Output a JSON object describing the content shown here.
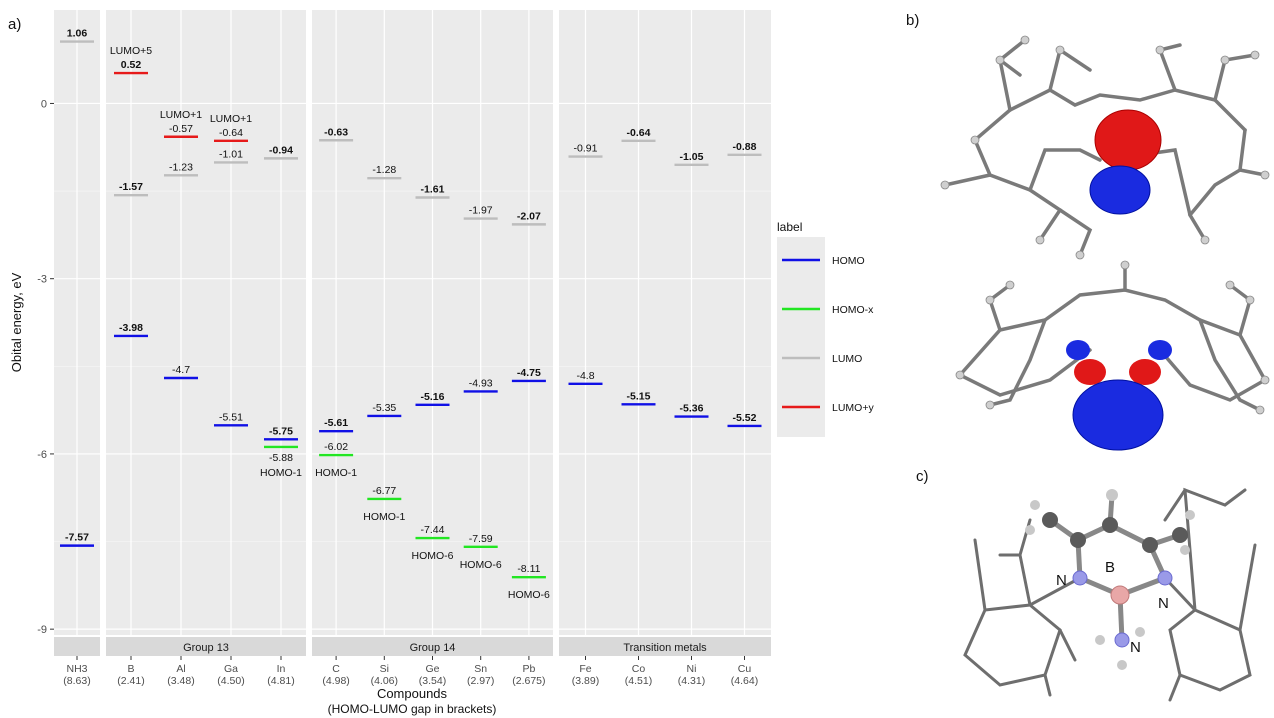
{
  "panel_labels": {
    "a": "a)",
    "b": "b)",
    "c": "c)"
  },
  "chart_data": {
    "type": "scatter",
    "ylabel": "Obital energy, eV",
    "xlabel": "Compounds",
    "xlabel2": "(HOMO-LUMO gap in brackets)",
    "yticks": [
      0,
      -3,
      -6,
      -9
    ],
    "ylim": [
      -9.1,
      1.6
    ],
    "legend": {
      "title": "label",
      "entries": [
        {
          "name": "HOMO",
          "color": "#1010e6"
        },
        {
          "name": "HOMO-x",
          "color": "#22e622"
        },
        {
          "name": "LUMO",
          "color": "#bdbdbd"
        },
        {
          "name": "LUMO+y",
          "color": "#e61a1a"
        }
      ]
    },
    "facets": [
      {
        "strip": "",
        "compounds": [
          {
            "name": "NH3",
            "gap": "(8.63)"
          }
        ]
      },
      {
        "strip": "Group 13",
        "compounds": [
          {
            "name": "B",
            "gap": "(2.41)"
          },
          {
            "name": "Al",
            "gap": "(3.48)"
          },
          {
            "name": "Ga",
            "gap": "(4.50)"
          },
          {
            "name": "In",
            "gap": "(4.81)"
          }
        ]
      },
      {
        "strip": "Group 14",
        "compounds": [
          {
            "name": "C",
            "gap": "(4.98)"
          },
          {
            "name": "Si",
            "gap": "(4.06)"
          },
          {
            "name": "Ge",
            "gap": "(3.54)"
          },
          {
            "name": "Sn",
            "gap": "(2.97)"
          },
          {
            "name": "Pb",
            "gap": "(2.675)"
          }
        ]
      },
      {
        "strip": "Transition metals",
        "compounds": [
          {
            "name": "Fe",
            "gap": "(3.89)"
          },
          {
            "name": "Co",
            "gap": "(4.51)"
          },
          {
            "name": "Ni",
            "gap": "(4.31)"
          },
          {
            "name": "Cu",
            "gap": "(4.64)"
          }
        ]
      }
    ],
    "levels": [
      {
        "compound": "NH3",
        "label": "LUMO",
        "y": 1.06,
        "text": "1.06"
      },
      {
        "compound": "NH3",
        "label": "HOMO",
        "y": -7.57,
        "text": "-7.57"
      },
      {
        "compound": "B",
        "label": "LUMO+y",
        "y": 0.52,
        "text": "0.52",
        "tag": "LUMO+5"
      },
      {
        "compound": "B",
        "label": "LUMO",
        "y": -1.57,
        "text": "-1.57"
      },
      {
        "compound": "B",
        "label": "HOMO",
        "y": -3.98,
        "text": "-3.98"
      },
      {
        "compound": "Al",
        "label": "LUMO+y",
        "y": -0.57,
        "text": "-0.57",
        "tag": "LUMO+1"
      },
      {
        "compound": "Al",
        "label": "LUMO",
        "y": -1.23,
        "text": "-1.23"
      },
      {
        "compound": "Al",
        "label": "HOMO",
        "y": -4.7,
        "text": "-4.7"
      },
      {
        "compound": "Ga",
        "label": "LUMO+y",
        "y": -0.64,
        "text": "-0.64",
        "tag": "LUMO+1"
      },
      {
        "compound": "Ga",
        "label": "LUMO",
        "y": -1.01,
        "text": "-1.01"
      },
      {
        "compound": "Ga",
        "label": "HOMO",
        "y": -5.51,
        "text": "-5.51"
      },
      {
        "compound": "In",
        "label": "LUMO",
        "y": -0.94,
        "text": "-0.94"
      },
      {
        "compound": "In",
        "label": "HOMO",
        "y": -5.75,
        "text": "-5.75"
      },
      {
        "compound": "In",
        "label": "HOMO-x",
        "y": -5.88,
        "text": "-5.88",
        "tag": "HOMO-1"
      },
      {
        "compound": "C",
        "label": "LUMO",
        "y": -0.63,
        "text": "-0.63"
      },
      {
        "compound": "C",
        "label": "HOMO",
        "y": -5.61,
        "text": "-5.61"
      },
      {
        "compound": "C",
        "label": "HOMO-x",
        "y": -6.02,
        "text": "-6.02",
        "tag": "HOMO-1"
      },
      {
        "compound": "Si",
        "label": "LUMO",
        "y": -1.28,
        "text": "-1.28"
      },
      {
        "compound": "Si",
        "label": "HOMO",
        "y": -5.35,
        "text": "-5.35"
      },
      {
        "compound": "Si",
        "label": "HOMO-x",
        "y": -6.77,
        "text": "-6.77",
        "tag": "HOMO-1"
      },
      {
        "compound": "Ge",
        "label": "LUMO",
        "y": -1.61,
        "text": "-1.61"
      },
      {
        "compound": "Ge",
        "label": "HOMO",
        "y": -5.16,
        "text": "-5.16"
      },
      {
        "compound": "Ge",
        "label": "HOMO-x",
        "y": -7.44,
        "text": "-7.44",
        "tag": "HOMO-6"
      },
      {
        "compound": "Sn",
        "label": "LUMO",
        "y": -1.97,
        "text": "-1.97"
      },
      {
        "compound": "Sn",
        "label": "HOMO",
        "y": -4.93,
        "text": "-4.93"
      },
      {
        "compound": "Sn",
        "label": "HOMO-x",
        "y": -7.59,
        "text": "-7.59",
        "tag": "HOMO-6"
      },
      {
        "compound": "Pb",
        "label": "LUMO",
        "y": -2.07,
        "text": "-2.07"
      },
      {
        "compound": "Pb",
        "label": "HOMO",
        "y": -4.75,
        "text": "-4.75"
      },
      {
        "compound": "Pb",
        "label": "HOMO-x",
        "y": -8.11,
        "text": "-8.11",
        "tag": "HOMO-6"
      },
      {
        "compound": "Fe",
        "label": "LUMO",
        "y": -0.91,
        "text": "-0.91"
      },
      {
        "compound": "Fe",
        "label": "HOMO",
        "y": -4.8,
        "text": "-4.8"
      },
      {
        "compound": "Co",
        "label": "LUMO",
        "y": -0.64,
        "text": "-0.64"
      },
      {
        "compound": "Co",
        "label": "HOMO",
        "y": -5.15,
        "text": "-5.15"
      },
      {
        "compound": "Ni",
        "label": "LUMO",
        "y": -1.05,
        "text": "-1.05"
      },
      {
        "compound": "Ni",
        "label": "HOMO",
        "y": -5.36,
        "text": "-5.36"
      },
      {
        "compound": "Cu",
        "label": "LUMO",
        "y": -0.88,
        "text": "-0.88"
      },
      {
        "compound": "Cu",
        "label": "HOMO",
        "y": -5.52,
        "text": "-5.52"
      }
    ]
  },
  "molecule_c": {
    "atom_labels": [
      "N",
      "B",
      "N",
      "N"
    ]
  }
}
